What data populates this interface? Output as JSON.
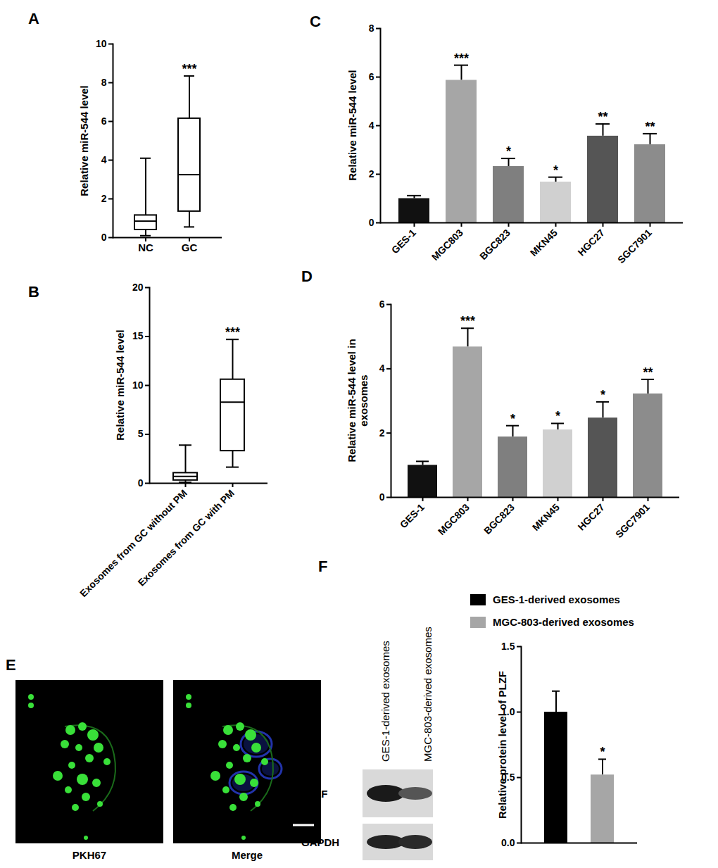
{
  "chart_data": [
    {
      "type": "box",
      "title": "A",
      "y_label": "Relative miR-544 level",
      "categories": [
        "NC",
        "GC"
      ],
      "min": [
        0.1,
        0.55
      ],
      "q1": [
        0.4,
        1.35
      ],
      "median": [
        0.85,
        3.25
      ],
      "q3": [
        1.15,
        6.15
      ],
      "max": [
        4.1,
        8.35
      ],
      "annotations": [
        null,
        "***"
      ],
      "color": "#000000",
      "ylim": [
        0,
        10
      ],
      "yticks": [
        0,
        2,
        4,
        6,
        8,
        10
      ]
    },
    {
      "type": "box",
      "title": "B",
      "y_label": "Relative miR-544 level",
      "categories": [
        "Exosomes from GC without PM",
        "Exosomes from GC with PM"
      ],
      "min": [
        0.1,
        1.65
      ],
      "q1": [
        0.3,
        3.3
      ],
      "median": [
        0.7,
        8.3
      ],
      "q3": [
        1.05,
        10.6
      ],
      "max": [
        3.9,
        14.7
      ],
      "annotations": [
        null,
        "***"
      ],
      "color": "#000000",
      "ylim": [
        0,
        20
      ],
      "yticks": [
        0,
        5,
        10,
        15,
        20
      ]
    },
    {
      "type": "bar",
      "title": "C",
      "y_label": "Relative miR-544 level",
      "categories": [
        "GES-1",
        "MGC803",
        "BGC823",
        "MKN45",
        "HGC27",
        "SGC7901"
      ],
      "values": [
        1.0,
        5.87,
        2.32,
        1.68,
        3.57,
        3.22
      ],
      "errors": [
        0.12,
        0.62,
        0.33,
        0.2,
        0.5,
        0.45
      ],
      "annotations": [
        null,
        "***",
        "*",
        "*",
        "**",
        "**"
      ],
      "colors": [
        "#111111",
        "#a6a6a6",
        "#7f7f7f",
        "#d0d0d0",
        "#555555",
        "#8c8c8c"
      ],
      "ylim": [
        0,
        8
      ],
      "yticks": [
        0,
        2,
        4,
        6,
        8
      ]
    },
    {
      "type": "bar",
      "title": "D",
      "y_label": "Relative miR-544 level in exosomes",
      "categories": [
        "GES-1",
        "MGC803",
        "BGC823",
        "MKN45",
        "HGC27",
        "SGC7901"
      ],
      "values": [
        1.0,
        4.68,
        1.88,
        2.1,
        2.47,
        3.22
      ],
      "errors": [
        0.12,
        0.58,
        0.35,
        0.2,
        0.5,
        0.45
      ],
      "annotations": [
        null,
        "***",
        "*",
        "*",
        "*",
        "**"
      ],
      "colors": [
        "#111111",
        "#a6a6a6",
        "#7f7f7f",
        "#d0d0d0",
        "#555555",
        "#8c8c8c"
      ],
      "ylim": [
        0,
        6
      ],
      "yticks": [
        0,
        2,
        4,
        6
      ]
    },
    {
      "type": "bar",
      "title": "F",
      "y_label": "Relative protein level of PLZF",
      "categories": [
        "GES-1-derived exosomes",
        "MGC-803-derived exosomes"
      ],
      "values": [
        1.0,
        0.52
      ],
      "errors": [
        0.16,
        0.12
      ],
      "annotations": [
        null,
        "*"
      ],
      "colors": [
        "#000000",
        "#a6a6a6"
      ],
      "legend": "top",
      "tick_labels": "y",
      "ylim": [
        0,
        1.5
      ],
      "yticks": [
        {
          "value": 0,
          "label": "0.0"
        },
        {
          "value": 0.5,
          "label": "0.5"
        },
        {
          "value": 1,
          "label": "1.0"
        },
        {
          "value": 1.5,
          "label": "1.5"
        }
      ]
    }
  ],
  "image_panel": {
    "title": "E",
    "labels": [
      "PKH67",
      "Merge"
    ]
  },
  "blot": {
    "lanes": [
      "GES-1-derived exosomes",
      "MGC-803-derived exosomes"
    ],
    "rows": [
      "PLZF",
      "GAPDH"
    ]
  }
}
